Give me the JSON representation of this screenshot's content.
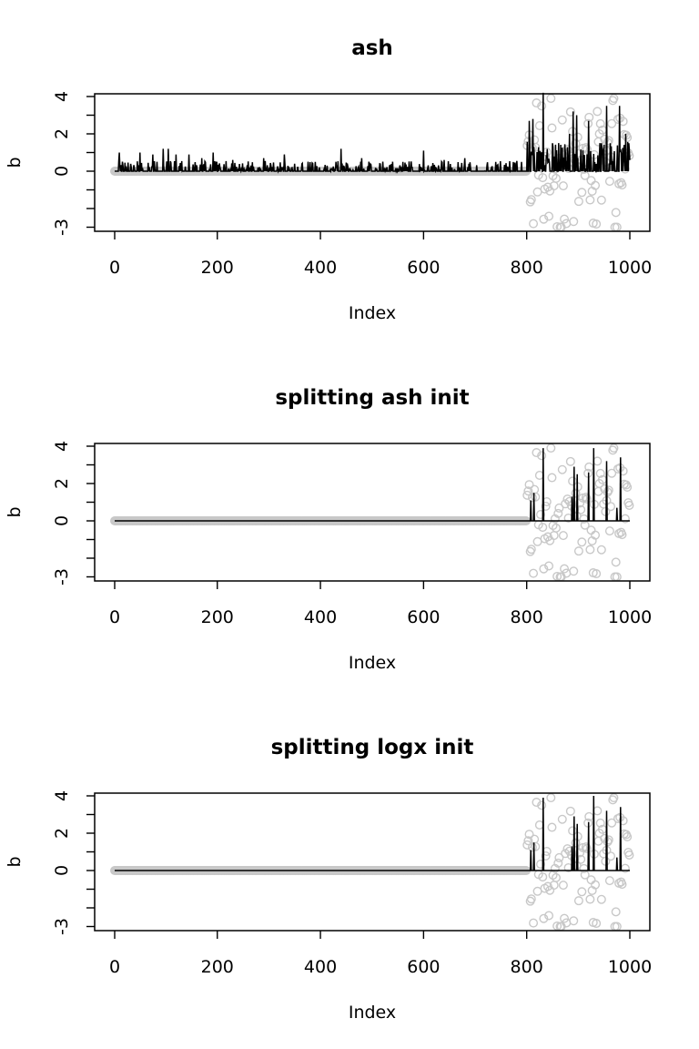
{
  "chart_data": [
    {
      "type": "scatter",
      "title": "ash",
      "xlabel": "Index",
      "ylabel": "b",
      "xlim": [
        0,
        1000
      ],
      "ylim": [
        -3,
        4
      ],
      "x_ticks": [
        "0",
        "200",
        "400",
        "600",
        "800",
        "1000"
      ],
      "y_ticks": [
        "-3",
        "0",
        "2",
        "4"
      ],
      "series": [
        {
          "style": "gray open circles",
          "color": "#c8c8c8",
          "description_x": [
            1,
            1000
          ],
          "nonzero_region_x": [
            800,
            1000
          ],
          "value_range": [
            -3,
            4
          ]
        },
        {
          "style": "black line",
          "color": "#000000",
          "peak_points": [
            [
              10,
              1.0
            ],
            [
              50,
              1.0
            ],
            [
              75,
              0.9
            ],
            [
              95,
              1.2
            ],
            [
              105,
              1.2
            ],
            [
              120,
              0.9
            ],
            [
              145,
              0.9
            ],
            [
              170,
              0.7
            ],
            [
              192,
              1.0
            ],
            [
              230,
              0.6
            ],
            [
              290,
              0.7
            ],
            [
              330,
              0.9
            ],
            [
              390,
              0.5
            ],
            [
              440,
              1.2
            ],
            [
              480,
              0.7
            ],
            [
              560,
              0.5
            ],
            [
              600,
              1.1
            ],
            [
              640,
              0.6
            ],
            [
              680,
              0.7
            ],
            [
              740,
              0.5
            ],
            [
              790,
              0.5
            ],
            [
              805,
              2.7
            ],
            [
              812,
              2.8
            ],
            [
              832,
              4.2
            ],
            [
              850,
              1.5
            ],
            [
              883,
              2.0
            ],
            [
              890,
              3.2
            ],
            [
              897,
              3.0
            ],
            [
              920,
              2.7
            ],
            [
              945,
              1.5
            ],
            [
              955,
              3.5
            ],
            [
              962,
              1.5
            ],
            [
              980,
              3.5
            ],
            [
              992,
              2.0
            ],
            [
              998,
              1.5
            ]
          ]
        }
      ]
    },
    {
      "type": "scatter",
      "title": "splitting ash init",
      "xlabel": "Index",
      "ylabel": "b",
      "xlim": [
        0,
        1000
      ],
      "ylim": [
        -3,
        4
      ],
      "x_ticks": [
        "0",
        "200",
        "400",
        "600",
        "800",
        "1000"
      ],
      "y_ticks": [
        "-3",
        "0",
        "2",
        "4"
      ],
      "series": [
        {
          "style": "gray open circles",
          "color": "#c8c8c8",
          "nonzero_region_x": [
            800,
            1000
          ],
          "value_range": [
            -3,
            4
          ]
        },
        {
          "style": "black line",
          "color": "#000000",
          "peak_points": [
            [
              808,
              1.1
            ],
            [
              814,
              1.5
            ],
            [
              832,
              3.9
            ],
            [
              888,
              1.3
            ],
            [
              892,
              2.9
            ],
            [
              898,
              2.5
            ],
            [
              920,
              2.6
            ],
            [
              930,
              3.9
            ],
            [
              955,
              3.2
            ],
            [
              975,
              0.7
            ],
            [
              982,
              3.4
            ]
          ]
        }
      ]
    },
    {
      "type": "scatter",
      "title": "splitting logx init",
      "xlabel": "Index",
      "ylabel": "b",
      "xlim": [
        0,
        1000
      ],
      "ylim": [
        -3,
        4
      ],
      "x_ticks": [
        "0",
        "200",
        "400",
        "600",
        "800",
        "1000"
      ],
      "y_ticks": [
        "-3",
        "0",
        "2",
        "4"
      ],
      "series": [
        {
          "style": "gray open circles",
          "color": "#c8c8c8",
          "nonzero_region_x": [
            800,
            1000
          ],
          "value_range": [
            -3,
            4
          ]
        },
        {
          "style": "black line",
          "color": "#000000",
          "peak_points": [
            [
              808,
              1.1
            ],
            [
              814,
              1.5
            ],
            [
              832,
              3.9
            ],
            [
              888,
              1.3
            ],
            [
              892,
              2.9
            ],
            [
              898,
              2.5
            ],
            [
              920,
              2.6
            ],
            [
              930,
              4.0
            ],
            [
              955,
              3.2
            ],
            [
              975,
              0.7
            ],
            [
              982,
              3.4
            ]
          ]
        }
      ]
    }
  ]
}
